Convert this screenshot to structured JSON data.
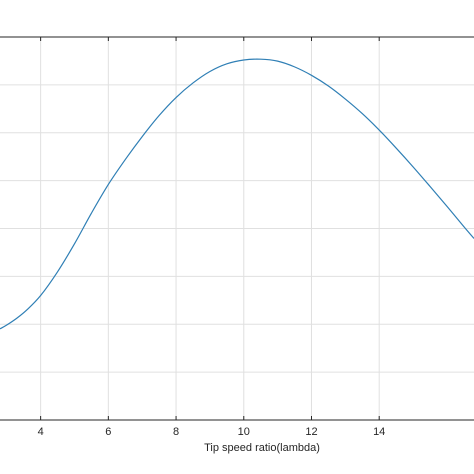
{
  "chart_data": {
    "type": "line",
    "title": "",
    "xlabel": "Tip speed ratio(lambda)",
    "ylabel": "",
    "xlim": [
      2.8,
      16.8
    ],
    "ylim": [
      0,
      1
    ],
    "x_ticks": [
      4,
      6,
      8,
      10,
      12,
      14
    ],
    "y_grid_count": 8,
    "grid": true,
    "series": [
      {
        "color": "#2f7fb5",
        "x": [
          2.8,
          3.0,
          3.3,
          3.6,
          4.0,
          4.5,
          5.0,
          5.5,
          6.0,
          6.5,
          7.0,
          7.5,
          8.0,
          8.5,
          9.0,
          9.5,
          10.0,
          10.5,
          11.0,
          11.5,
          12.0,
          12.5,
          13.0,
          13.5,
          14.0,
          14.5,
          15.0,
          15.5,
          16.0,
          16.5,
          16.8
        ],
        "y": [
          0.238,
          0.248,
          0.266,
          0.288,
          0.325,
          0.387,
          0.46,
          0.54,
          0.615,
          0.68,
          0.74,
          0.795,
          0.842,
          0.88,
          0.91,
          0.93,
          0.94,
          0.942,
          0.937,
          0.922,
          0.9,
          0.872,
          0.838,
          0.8,
          0.757,
          0.71,
          0.661,
          0.61,
          0.558,
          0.505,
          0.474
        ]
      }
    ]
  }
}
